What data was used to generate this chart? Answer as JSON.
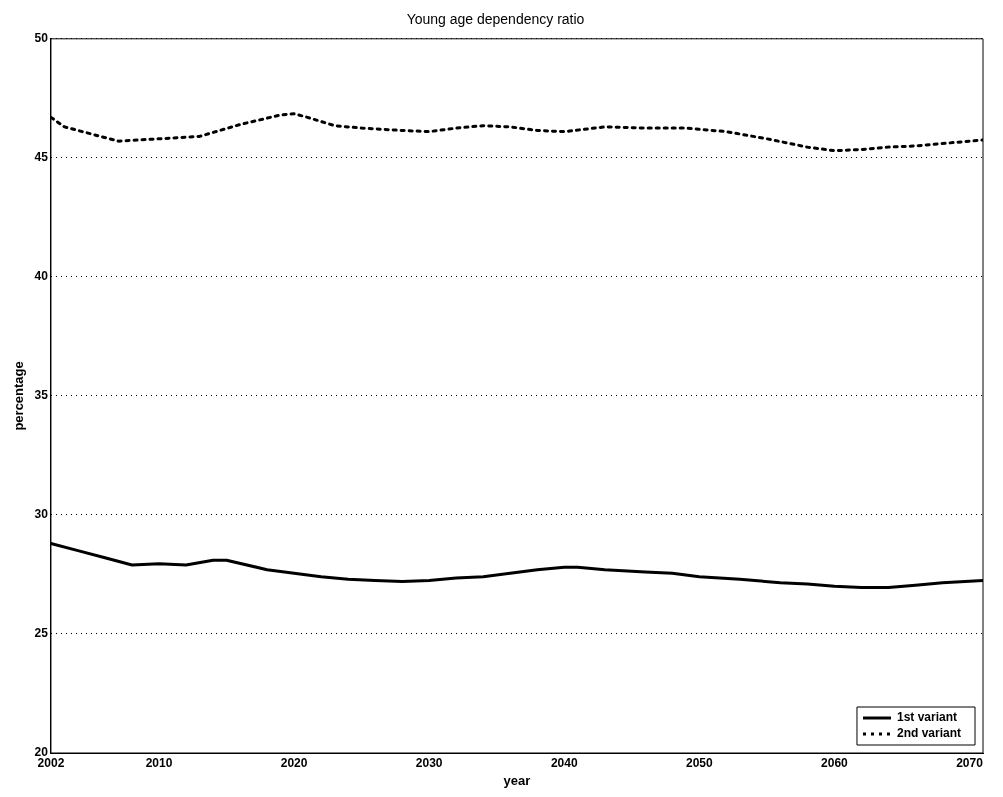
{
  "chart_data": {
    "type": "line",
    "title": "Young age dependency ratio",
    "xlabel": "year",
    "ylabel": "percentage",
    "xlim": [
      2002,
      2071
    ],
    "xticks": [
      2002,
      2010,
      2020,
      2030,
      2040,
      2050,
      2060,
      2070
    ],
    "ylim": [
      20,
      50
    ],
    "yticks": [
      20,
      25,
      30,
      35,
      40,
      45,
      50
    ],
    "grid": "y",
    "legend": "bottom right",
    "marker": "none",
    "series": [
      {
        "name": "1st variant",
        "color": "#000000",
        "line_style": "solid",
        "x": [
          2002,
          2004,
          2006,
          2008,
          2010,
          2012,
          2014,
          2015,
          2018,
          2020,
          2022,
          2024,
          2026,
          2028,
          2030,
          2032,
          2034,
          2036,
          2038,
          2040,
          2041,
          2043,
          2046,
          2048,
          2050,
          2053,
          2056,
          2058,
          2060,
          2062,
          2064,
          2066,
          2068,
          2071
        ],
        "values": [
          28.8,
          28.5,
          28.2,
          27.9,
          27.95,
          27.9,
          28.1,
          28.1,
          27.7,
          27.55,
          27.4,
          27.3,
          27.25,
          27.2,
          27.25,
          27.35,
          27.4,
          27.55,
          27.7,
          27.8,
          27.8,
          27.7,
          27.6,
          27.55,
          27.4,
          27.3,
          27.15,
          27.1,
          27.0,
          26.95,
          26.95,
          27.05,
          27.15,
          27.25
        ]
      },
      {
        "name": "2nd variant",
        "color": "#000000",
        "line_style": "dotted",
        "x": [
          2002,
          2003,
          2005,
          2007,
          2010,
          2013,
          2016,
          2019,
          2020,
          2021,
          2023,
          2025,
          2028,
          2030,
          2032,
          2034,
          2036,
          2038,
          2040,
          2043,
          2046,
          2049,
          2052,
          2055,
          2058,
          2060,
          2062,
          2064,
          2066,
          2068,
          2071
        ],
        "values": [
          46.7,
          46.3,
          46.0,
          45.7,
          45.8,
          45.9,
          46.4,
          46.8,
          46.85,
          46.7,
          46.35,
          46.25,
          46.15,
          46.1,
          46.25,
          46.35,
          46.3,
          46.15,
          46.1,
          46.3,
          46.25,
          46.25,
          46.1,
          45.8,
          45.45,
          45.3,
          45.35,
          45.45,
          45.5,
          45.6,
          45.75
        ]
      }
    ]
  }
}
